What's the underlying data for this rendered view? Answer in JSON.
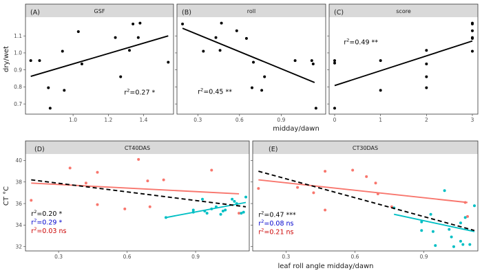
{
  "chart_data": [
    {
      "type": "scatter",
      "tag": "(A)",
      "strip": "GSF",
      "xlim": [
        0.73,
        1.57
      ],
      "ylim": [
        0.64,
        1.21
      ],
      "xticks": [
        1.0,
        1.2,
        1.4
      ],
      "xtick_labels": [
        "1.0",
        "1.2",
        "1.4"
      ],
      "yticks": [
        0.7,
        0.8,
        0.9,
        1.0,
        1.1
      ],
      "ytick_labels": [
        "0.7",
        "0.8",
        "0.9",
        "1.0",
        "1.1"
      ],
      "points": [
        {
          "x": 0.76,
          "y": 0.955
        },
        {
          "x": 0.81,
          "y": 0.955
        },
        {
          "x": 0.86,
          "y": 0.795
        },
        {
          "x": 0.87,
          "y": 0.675
        },
        {
          "x": 0.94,
          "y": 1.01
        },
        {
          "x": 0.95,
          "y": 0.78
        },
        {
          "x": 1.03,
          "y": 1.125
        },
        {
          "x": 1.05,
          "y": 0.935
        },
        {
          "x": 1.24,
          "y": 1.09
        },
        {
          "x": 1.27,
          "y": 0.86
        },
        {
          "x": 1.32,
          "y": 1.015
        },
        {
          "x": 1.34,
          "y": 1.17
        },
        {
          "x": 1.37,
          "y": 1.09
        },
        {
          "x": 1.38,
          "y": 1.175
        },
        {
          "x": 1.54,
          "y": 0.945
        }
      ],
      "fits": [
        {
          "x": [
            0.76,
            1.54
          ],
          "y": [
            0.862,
            1.1
          ],
          "color": "#000000",
          "dashed": false
        }
      ],
      "annotations": [
        {
          "x": 1.29,
          "y": 0.755,
          "prefix": "r",
          "sup": "2",
          "text": "=0.27 *",
          "color": "#000000"
        }
      ]
    },
    {
      "type": "scatter",
      "tag": "(B)",
      "strip": "roll",
      "xlim": [
        0.15,
        1.22
      ],
      "ylim": [
        0.64,
        1.21
      ],
      "xticks": [
        0.3,
        0.6,
        0.9
      ],
      "xtick_labels": [
        "0.3",
        "0.6",
        "0.9"
      ],
      "yticks": [
        0.7,
        0.8,
        0.9,
        1.0,
        1.1
      ],
      "ytick_labels": [],
      "points": [
        {
          "x": 0.19,
          "y": 1.17
        },
        {
          "x": 0.34,
          "y": 1.01
        },
        {
          "x": 0.43,
          "y": 1.09
        },
        {
          "x": 0.46,
          "y": 1.015
        },
        {
          "x": 0.47,
          "y": 1.175
        },
        {
          "x": 0.58,
          "y": 1.13
        },
        {
          "x": 0.65,
          "y": 1.085
        },
        {
          "x": 0.69,
          "y": 0.795
        },
        {
          "x": 0.7,
          "y": 0.945
        },
        {
          "x": 0.76,
          "y": 0.78
        },
        {
          "x": 0.78,
          "y": 0.86
        },
        {
          "x": 1.0,
          "y": 0.955
        },
        {
          "x": 1.12,
          "y": 0.955
        },
        {
          "x": 1.13,
          "y": 0.935
        },
        {
          "x": 1.15,
          "y": 0.675
        }
      ],
      "fits": [
        {
          "x": [
            0.19,
            1.14
          ],
          "y": [
            1.145,
            0.826
          ],
          "color": "#000000",
          "dashed": false
        }
      ],
      "annotations": [
        {
          "x": 0.3,
          "y": 0.76,
          "prefix": "r",
          "sup": "2",
          "text": "=0.45 **",
          "color": "#000000"
        }
      ]
    },
    {
      "type": "scatter",
      "tag": "(C)",
      "strip": "score",
      "xlim": [
        -0.12,
        3.12
      ],
      "ylim": [
        0.64,
        1.21
      ],
      "xticks": [
        0,
        1,
        2,
        3
      ],
      "xtick_labels": [
        "0",
        "1",
        "2",
        "3"
      ],
      "yticks": [
        0.7,
        0.8,
        0.9,
        1.0,
        1.1
      ],
      "ytick_labels": [],
      "points": [
        {
          "x": 0,
          "y": 0.675
        },
        {
          "x": 0,
          "y": 0.94
        },
        {
          "x": 0,
          "y": 0.955
        },
        {
          "x": 1,
          "y": 0.78
        },
        {
          "x": 1,
          "y": 0.955
        },
        {
          "x": 2,
          "y": 0.795
        },
        {
          "x": 2,
          "y": 0.86
        },
        {
          "x": 2,
          "y": 0.935
        },
        {
          "x": 2,
          "y": 1.015
        },
        {
          "x": 3,
          "y": 1.01
        },
        {
          "x": 3,
          "y": 1.085
        },
        {
          "x": 3,
          "y": 1.09
        },
        {
          "x": 3,
          "y": 1.13
        },
        {
          "x": 3,
          "y": 1.17
        },
        {
          "x": 3,
          "y": 1.175
        }
      ],
      "fits": [
        {
          "x": [
            0,
            3
          ],
          "y": [
            0.808,
            1.07
          ],
          "color": "#000000",
          "dashed": false
        }
      ],
      "annotations": [
        {
          "x": 0.2,
          "y": 1.05,
          "prefix": "r",
          "sup": "2",
          "text": "=0.49 **",
          "color": "#000000"
        }
      ]
    },
    {
      "type": "scatter",
      "tag": "(D)",
      "strip": "CT40DAS",
      "xlim": [
        0.155,
        1.135
      ],
      "ylim": [
        31.6,
        40.6
      ],
      "xticks": [
        0.3,
        0.6,
        0.9
      ],
      "xtick_labels": [
        "0.3",
        "0.6",
        "0.9"
      ],
      "yticks": [
        32,
        34,
        36,
        38,
        40
      ],
      "ytick_labels": [
        "32",
        "34",
        "36",
        "38",
        "40"
      ],
      "points": [
        {
          "x": 0.18,
          "y": 36.3,
          "color": "#f8766d"
        },
        {
          "x": 0.35,
          "y": 39.3,
          "color": "#f8766d"
        },
        {
          "x": 0.42,
          "y": 37.9,
          "color": "#f8766d"
        },
        {
          "x": 0.47,
          "y": 38.9,
          "color": "#f8766d"
        },
        {
          "x": 0.47,
          "y": 35.9,
          "color": "#f8766d"
        },
        {
          "x": 0.59,
          "y": 35.5,
          "color": "#f8766d"
        },
        {
          "x": 0.65,
          "y": 40.1,
          "color": "#f8766d"
        },
        {
          "x": 0.69,
          "y": 38.1,
          "color": "#f8766d"
        },
        {
          "x": 0.7,
          "y": 35.7,
          "color": "#f8766d"
        },
        {
          "x": 0.76,
          "y": 38.2,
          "color": "#f8766d"
        },
        {
          "x": 0.97,
          "y": 39.1,
          "color": "#f8766d"
        },
        {
          "x": 1.09,
          "y": 35.1,
          "color": "#f8766d"
        },
        {
          "x": 0.77,
          "y": 34.7,
          "color": "#00bfc4"
        },
        {
          "x": 0.89,
          "y": 35.4,
          "color": "#00bfc4"
        },
        {
          "x": 0.89,
          "y": 35.2,
          "color": "#00bfc4"
        },
        {
          "x": 0.93,
          "y": 36.4,
          "color": "#00bfc4"
        },
        {
          "x": 0.94,
          "y": 35.3,
          "color": "#00bfc4"
        },
        {
          "x": 0.95,
          "y": 35.1,
          "color": "#00bfc4"
        },
        {
          "x": 0.97,
          "y": 35.5,
          "color": "#00bfc4"
        },
        {
          "x": 0.99,
          "y": 35.7,
          "color": "#00bfc4"
        },
        {
          "x": 1.01,
          "y": 35.0,
          "color": "#00bfc4"
        },
        {
          "x": 1.02,
          "y": 35.3,
          "color": "#00bfc4"
        },
        {
          "x": 1.03,
          "y": 35.4,
          "color": "#00bfc4"
        },
        {
          "x": 1.06,
          "y": 36.4,
          "color": "#00bfc4"
        },
        {
          "x": 1.07,
          "y": 36.2,
          "color": "#00bfc4"
        },
        {
          "x": 1.08,
          "y": 36.0,
          "color": "#00bfc4"
        },
        {
          "x": 1.1,
          "y": 35.1,
          "color": "#00bfc4"
        },
        {
          "x": 1.11,
          "y": 35.2,
          "color": "#00bfc4"
        },
        {
          "x": 1.12,
          "y": 36.6,
          "color": "#00bfc4"
        }
      ],
      "fits": [
        {
          "x": [
            0.18,
            1.09
          ],
          "y": [
            37.9,
            36.9
          ],
          "color": "#f8766d",
          "dashed": false
        },
        {
          "x": [
            0.77,
            1.12
          ],
          "y": [
            34.7,
            36.1
          ],
          "color": "#00bfc4",
          "dashed": false
        },
        {
          "x": [
            0.18,
            1.12
          ],
          "y": [
            38.2,
            35.7
          ],
          "color": "#000000",
          "dashed": true
        }
      ],
      "annotations": [
        {
          "x": 0.18,
          "y": 34.85,
          "prefix": "r",
          "sup": "2",
          "text": "=0.20 *",
          "color": "#000000"
        },
        {
          "x": 0.18,
          "y": 34.05,
          "prefix": "r",
          "sup": "2",
          "text": "=0.29 *",
          "color": "#0000cc"
        },
        {
          "x": 0.18,
          "y": 33.25,
          "prefix": "r",
          "sup": "2",
          "text": "=0.03 ns",
          "color": "#cc0000"
        }
      ]
    },
    {
      "type": "scatter",
      "tag": "(E)",
      "strip": "CT30DAS",
      "xlim": [
        0.155,
        1.135
      ],
      "ylim": [
        31.6,
        40.6
      ],
      "xticks": [
        0.3,
        0.6,
        0.9
      ],
      "xtick_labels": [
        "0.3",
        "0.6",
        "0.9"
      ],
      "yticks": [
        32,
        34,
        36,
        38,
        40
      ],
      "ytick_labels": [],
      "points": [
        {
          "x": 0.18,
          "y": 37.4,
          "color": "#f8766d"
        },
        {
          "x": 0.35,
          "y": 37.5,
          "color": "#f8766d"
        },
        {
          "x": 0.42,
          "y": 37.0,
          "color": "#f8766d"
        },
        {
          "x": 0.47,
          "y": 39.0,
          "color": "#f8766d"
        },
        {
          "x": 0.47,
          "y": 35.4,
          "color": "#f8766d"
        },
        {
          "x": 0.59,
          "y": 39.1,
          "color": "#f8766d"
        },
        {
          "x": 0.65,
          "y": 38.5,
          "color": "#f8766d"
        },
        {
          "x": 0.69,
          "y": 37.9,
          "color": "#f8766d"
        },
        {
          "x": 0.7,
          "y": 36.9,
          "color": "#f8766d"
        },
        {
          "x": 0.76,
          "y": 35.7,
          "color": "#f8766d"
        },
        {
          "x": 1.09,
          "y": 34.8,
          "color": "#f8766d"
        },
        {
          "x": 1.08,
          "y": 36.1,
          "color": "#f8766d"
        },
        {
          "x": 0.77,
          "y": 35.6,
          "color": "#00bfc4"
        },
        {
          "x": 0.89,
          "y": 34.3,
          "color": "#00bfc4"
        },
        {
          "x": 0.89,
          "y": 33.5,
          "color": "#00bfc4"
        },
        {
          "x": 0.93,
          "y": 35.0,
          "color": "#00bfc4"
        },
        {
          "x": 0.94,
          "y": 33.4,
          "color": "#00bfc4"
        },
        {
          "x": 0.95,
          "y": 32.1,
          "color": "#00bfc4"
        },
        {
          "x": 0.99,
          "y": 37.2,
          "color": "#00bfc4"
        },
        {
          "x": 1.01,
          "y": 33.6,
          "color": "#00bfc4"
        },
        {
          "x": 1.02,
          "y": 32.9,
          "color": "#00bfc4"
        },
        {
          "x": 1.03,
          "y": 32.0,
          "color": "#00bfc4"
        },
        {
          "x": 1.06,
          "y": 32.5,
          "color": "#00bfc4"
        },
        {
          "x": 1.07,
          "y": 32.2,
          "color": "#00bfc4"
        },
        {
          "x": 1.08,
          "y": 34.7,
          "color": "#00bfc4"
        },
        {
          "x": 1.1,
          "y": 32.2,
          "color": "#00bfc4"
        },
        {
          "x": 1.12,
          "y": 35.8,
          "color": "#00bfc4"
        },
        {
          "x": 1.06,
          "y": 34.2,
          "color": "#00bfc4"
        }
      ],
      "fits": [
        {
          "x": [
            0.18,
            1.09
          ],
          "y": [
            38.2,
            36.1
          ],
          "color": "#f8766d",
          "dashed": false
        },
        {
          "x": [
            0.77,
            1.12
          ],
          "y": [
            35.0,
            33.4
          ],
          "color": "#00bfc4",
          "dashed": false
        },
        {
          "x": [
            0.18,
            1.12
          ],
          "y": [
            39.0,
            33.5
          ],
          "color": "#000000",
          "dashed": true
        }
      ],
      "annotations": [
        {
          "x": 0.18,
          "y": 34.75,
          "prefix": "r",
          "sup": "2",
          "text": "=0.47 ***",
          "color": "#000000"
        },
        {
          "x": 0.18,
          "y": 33.95,
          "prefix": "r",
          "sup": "2",
          "text": "=0.08 ns",
          "color": "#0000cc"
        },
        {
          "x": 0.18,
          "y": 33.15,
          "prefix": "r",
          "sup": "2",
          "text": "=0.21 ns",
          "color": "#cc0000"
        }
      ]
    }
  ],
  "axes": {
    "top_ylabel": "dry/wet",
    "top_xlabel": "midday/dawn",
    "bottom_ylabel": "CT °C",
    "bottom_xlabel": "leaf roll angle midday/dawn"
  },
  "colors": {
    "black_fit": "#000000",
    "red_series": "#f8766d",
    "teal_series": "#00bfc4",
    "strip_background": "#d9d9d9"
  }
}
